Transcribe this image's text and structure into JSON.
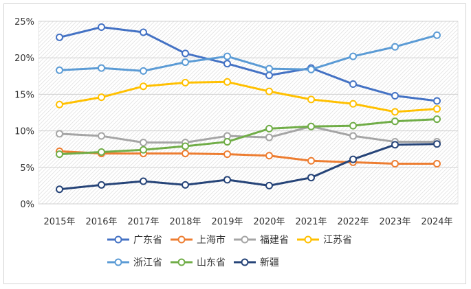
{
  "chart_data": {
    "type": "line",
    "title": "",
    "xlabel": "",
    "ylabel": "",
    "categories": [
      "2015年",
      "2016年",
      "2017年",
      "2018年",
      "2019年",
      "2020年",
      "2021年",
      "2022年",
      "2023年",
      "2024年"
    ],
    "y_ticks": [
      "0%",
      "5%",
      "10%",
      "15%",
      "20%",
      "25%"
    ],
    "ylim": [
      0,
      25
    ],
    "grid": "horizontal, hatched plot area",
    "legend": "bottom",
    "series": [
      {
        "name": "广东省",
        "color": "#4472C4",
        "values": [
          22.8,
          24.2,
          23.5,
          20.6,
          19.2,
          17.6,
          18.6,
          16.4,
          14.8,
          14.1
        ]
      },
      {
        "name": "上海市",
        "color": "#ED7D31",
        "values": [
          7.2,
          6.9,
          6.9,
          6.9,
          6.8,
          6.6,
          5.9,
          5.7,
          5.5,
          5.5
        ]
      },
      {
        "name": "福建省",
        "color": "#A5A5A5",
        "values": [
          9.6,
          9.3,
          8.4,
          8.4,
          9.3,
          9.1,
          10.6,
          9.3,
          8.5,
          8.5
        ]
      },
      {
        "name": "江苏省",
        "color": "#FFC000",
        "values": [
          13.6,
          14.6,
          16.1,
          16.6,
          16.7,
          15.4,
          14.3,
          13.7,
          12.6,
          13.0
        ]
      },
      {
        "name": "浙江省",
        "color": "#5B9BD5",
        "values": [
          18.3,
          18.6,
          18.2,
          19.4,
          20.2,
          18.5,
          18.4,
          20.2,
          21.5,
          23.1
        ]
      },
      {
        "name": "山东省",
        "color": "#70AD47",
        "values": [
          6.8,
          7.1,
          7.4,
          7.9,
          8.5,
          10.3,
          10.6,
          10.7,
          11.3,
          11.6
        ]
      },
      {
        "name": "新疆",
        "color": "#264478",
        "values": [
          2.0,
          2.6,
          3.1,
          2.6,
          3.3,
          2.5,
          3.6,
          6.1,
          8.1,
          8.2
        ]
      }
    ]
  }
}
